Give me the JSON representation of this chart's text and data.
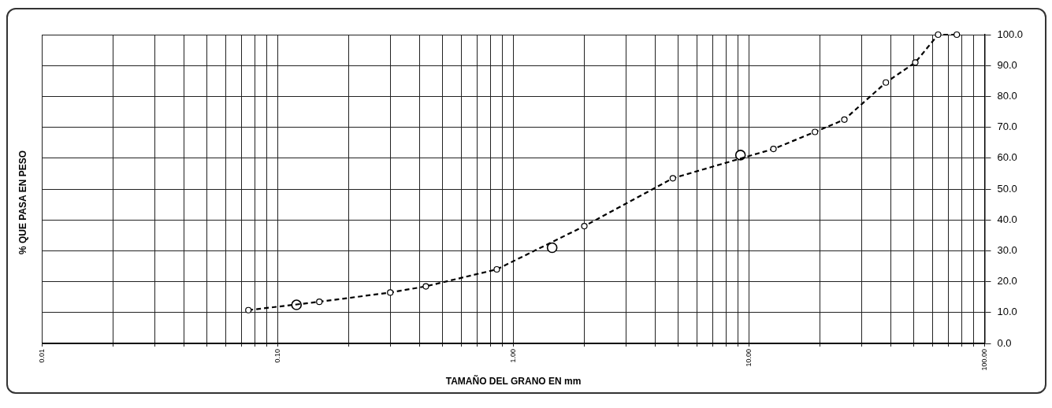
{
  "chart_data": {
    "type": "line",
    "xlabel": "TAMAÑO DEL GRANO EN mm",
    "ylabel": "% QUE PASA EN PESO",
    "log": "x",
    "grid": true,
    "legend": false,
    "xlim": [
      0.01,
      100
    ],
    "ylim": [
      0,
      100
    ],
    "xticks": [
      {
        "value": 0.01,
        "label": "0.01"
      },
      {
        "value": 0.02,
        "label": null
      },
      {
        "value": 0.03,
        "label": null
      },
      {
        "value": 0.04,
        "label": null
      },
      {
        "value": 0.05,
        "label": null
      },
      {
        "value": 0.06,
        "label": null
      },
      {
        "value": 0.07,
        "label": null
      },
      {
        "value": 0.08,
        "label": null
      },
      {
        "value": 0.09,
        "label": null
      },
      {
        "value": 0.1,
        "label": "0.10"
      },
      {
        "value": 0.2,
        "label": null
      },
      {
        "value": 0.3,
        "label": null
      },
      {
        "value": 0.4,
        "label": null
      },
      {
        "value": 0.5,
        "label": null
      },
      {
        "value": 0.6,
        "label": null
      },
      {
        "value": 0.7,
        "label": null
      },
      {
        "value": 0.8,
        "label": null
      },
      {
        "value": 0.9,
        "label": null
      },
      {
        "value": 1,
        "label": "1.00"
      },
      {
        "value": 2,
        "label": null
      },
      {
        "value": 3,
        "label": null
      },
      {
        "value": 4,
        "label": null
      },
      {
        "value": 5,
        "label": null
      },
      {
        "value": 6,
        "label": null
      },
      {
        "value": 7,
        "label": null
      },
      {
        "value": 8,
        "label": null
      },
      {
        "value": 9,
        "label": null
      },
      {
        "value": 10,
        "label": "10.00"
      },
      {
        "value": 20,
        "label": null
      },
      {
        "value": 30,
        "label": null
      },
      {
        "value": 40,
        "label": null
      },
      {
        "value": 50,
        "label": null
      },
      {
        "value": 60,
        "label": null
      },
      {
        "value": 70,
        "label": null
      },
      {
        "value": 80,
        "label": null
      },
      {
        "value": 90,
        "label": null
      },
      {
        "value": 100,
        "label": "100.00"
      }
    ],
    "yticks": [
      {
        "value": 0,
        "label": "0.0"
      },
      {
        "value": 10,
        "label": "10.0"
      },
      {
        "value": 20,
        "label": "20.0"
      },
      {
        "value": 30,
        "label": "30.0"
      },
      {
        "value": 40,
        "label": "40.0"
      },
      {
        "value": 50,
        "label": "50.0"
      },
      {
        "value": 60,
        "label": "60.0"
      },
      {
        "value": 70,
        "label": "70.0"
      },
      {
        "value": 80,
        "label": "80.0"
      },
      {
        "value": 90,
        "label": "90.0"
      },
      {
        "value": 100,
        "label": "100.0"
      }
    ],
    "series": [
      {
        "type": "line",
        "color": "#000000",
        "line_style": "dashed",
        "marker": "circle",
        "x": [
          0.075,
          0.15,
          0.3,
          0.425,
          0.85,
          2.0,
          4.75,
          12.7,
          19.05,
          25.4,
          38.1,
          50.8,
          63.5,
          76.2
        ],
        "values": [
          10.8,
          13.5,
          16.5,
          18.5,
          24,
          38,
          53.5,
          63,
          68.5,
          72.5,
          84.5,
          91,
          100,
          100
        ]
      },
      {
        "type": "scatter",
        "color": "#000000",
        "marker": "circle",
        "x": [
          0.12,
          1.46,
          9.2
        ],
        "values": [
          12.5,
          31,
          61
        ]
      }
    ]
  }
}
